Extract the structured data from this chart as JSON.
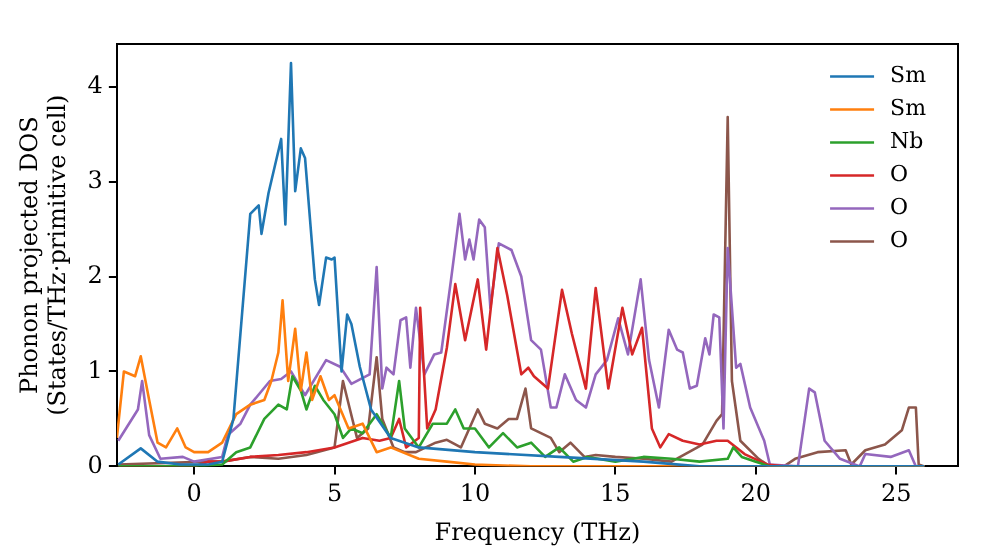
{
  "chart_data": {
    "type": "line",
    "xlabel": "Frequency (THz)",
    "ylabel": "Phonon projected DOS\n(States/THz·primitive cell)",
    "xlim": [
      -2.75,
      27.2
    ],
    "ylim": [
      0,
      4.45
    ],
    "xticks": [
      0,
      5,
      10,
      15,
      20,
      25
    ],
    "yticks": [
      0,
      1,
      2,
      3,
      4
    ],
    "grid": false,
    "legend": "top right",
    "marker": "none",
    "line_style": "solid",
    "series": [
      {
        "name": "Sm",
        "color": "#1f77b4",
        "x": [
          -2.7,
          -1.9,
          -1.3,
          -0.5,
          0.5,
          1.0,
          1.4,
          2.0,
          2.3,
          2.4,
          2.65,
          3.1,
          3.25,
          3.45,
          3.6,
          3.8,
          3.95,
          4.3,
          4.45,
          4.7,
          4.9,
          5.0,
          5.25,
          5.45,
          5.6,
          5.9,
          6.3,
          7.0,
          8.0,
          10.0,
          13.0,
          16.0,
          18.0,
          22.0,
          26.0
        ],
        "values": [
          0.02,
          0.19,
          0.05,
          0.02,
          0.02,
          0.05,
          0.5,
          2.66,
          2.75,
          2.45,
          2.88,
          3.45,
          2.55,
          4.25,
          2.9,
          3.35,
          3.25,
          1.97,
          1.7,
          2.2,
          2.18,
          2.2,
          1.0,
          1.6,
          1.5,
          1.05,
          0.6,
          0.3,
          0.2,
          0.15,
          0.1,
          0.05,
          0.0,
          0.0,
          0.0
        ]
      },
      {
        "name": "Sm",
        "color": "#ff7f0e",
        "x": [
          -2.75,
          -2.5,
          -2.1,
          -1.9,
          -1.6,
          -1.3,
          -1.0,
          -0.6,
          -0.3,
          0.0,
          0.5,
          1.0,
          1.5,
          2.0,
          2.5,
          2.75,
          3.0,
          3.15,
          3.35,
          3.6,
          3.8,
          4.0,
          4.2,
          4.5,
          4.8,
          5.0,
          5.5,
          6.0,
          6.5,
          7.0,
          8.0,
          9.0,
          10.0,
          12.0,
          16.0,
          20.0,
          26.0
        ],
        "values": [
          0.3,
          1.0,
          0.95,
          1.16,
          0.7,
          0.25,
          0.2,
          0.4,
          0.2,
          0.15,
          0.15,
          0.25,
          0.55,
          0.65,
          0.7,
          0.9,
          1.2,
          1.75,
          0.9,
          1.45,
          0.8,
          1.2,
          0.7,
          0.95,
          0.7,
          0.75,
          0.4,
          0.45,
          0.15,
          0.2,
          0.08,
          0.05,
          0.02,
          0.0,
          0.0,
          0.0,
          0.0
        ]
      },
      {
        "name": "Nb",
        "color": "#2ca02c",
        "x": [
          -2.7,
          0.0,
          1.0,
          1.5,
          2.0,
          2.5,
          3.0,
          3.3,
          3.5,
          3.8,
          4.0,
          4.3,
          4.6,
          5.0,
          5.3,
          5.6,
          6.0,
          6.5,
          7.0,
          7.3,
          7.5,
          8.0,
          8.5,
          9.0,
          9.3,
          9.6,
          10.0,
          10.5,
          11.0,
          11.5,
          12.0,
          12.5,
          13.0,
          13.5,
          14.0,
          15.0,
          16.0,
          17.0,
          18.0,
          19.0,
          19.2,
          19.5,
          20.0,
          20.5,
          26.0
        ],
        "values": [
          0.0,
          0.0,
          0.02,
          0.15,
          0.2,
          0.5,
          0.65,
          0.6,
          0.95,
          0.8,
          0.6,
          0.85,
          0.7,
          0.55,
          0.3,
          0.4,
          0.35,
          0.55,
          0.3,
          0.9,
          0.4,
          0.2,
          0.45,
          0.45,
          0.6,
          0.4,
          0.4,
          0.2,
          0.35,
          0.2,
          0.25,
          0.1,
          0.2,
          0.05,
          0.1,
          0.05,
          0.1,
          0.08,
          0.05,
          0.08,
          0.2,
          0.1,
          0.05,
          0.0,
          0.0
        ]
      },
      {
        "name": "O",
        "color": "#d62728",
        "x": [
          -2.7,
          0.0,
          0.5,
          1.0,
          2.0,
          3.0,
          4.0,
          5.0,
          5.5,
          6.0,
          6.6,
          7.0,
          7.3,
          7.55,
          8.0,
          8.05,
          8.3,
          8.6,
          9.0,
          9.3,
          9.65,
          10.1,
          10.4,
          10.8,
          11.15,
          11.65,
          11.9,
          12.1,
          12.6,
          13.1,
          13.45,
          13.95,
          14.3,
          14.75,
          15.25,
          15.6,
          15.95,
          16.3,
          16.6,
          16.9,
          17.4,
          18.0,
          18.6,
          19.0,
          19.6,
          20.4,
          21.0,
          26.0
        ],
        "values": [
          0.0,
          0.0,
          0.05,
          0.05,
          0.1,
          0.12,
          0.15,
          0.2,
          0.25,
          0.3,
          0.27,
          0.3,
          0.5,
          0.2,
          0.3,
          1.67,
          0.4,
          0.6,
          1.25,
          1.92,
          1.33,
          1.97,
          1.23,
          2.3,
          1.8,
          0.97,
          1.04,
          0.95,
          0.82,
          1.86,
          1.4,
          0.82,
          1.88,
          0.82,
          1.67,
          1.18,
          1.46,
          0.4,
          0.2,
          0.34,
          0.27,
          0.23,
          0.27,
          0.27,
          0.13,
          0.02,
          0.0,
          0.0
        ]
      },
      {
        "name": "O",
        "color": "#9467bd",
        "x": [
          -2.7,
          -2.0,
          -1.85,
          -1.6,
          -1.2,
          -0.4,
          0.0,
          1.0,
          1.2,
          1.65,
          2.0,
          2.7,
          3.1,
          3.45,
          3.95,
          4.7,
          5.2,
          5.6,
          6.25,
          6.5,
          6.7,
          6.85,
          7.1,
          7.35,
          7.55,
          7.7,
          7.9,
          8.2,
          8.55,
          8.8,
          9.15,
          9.45,
          9.65,
          9.8,
          9.95,
          10.15,
          10.35,
          10.55,
          10.85,
          11.3,
          11.65,
          12.0,
          12.35,
          12.7,
          12.9,
          13.2,
          13.6,
          13.95,
          14.3,
          14.7,
          15.1,
          15.45,
          15.9,
          16.2,
          16.55,
          16.9,
          17.2,
          17.4,
          17.65,
          17.9,
          18.2,
          18.35,
          18.5,
          18.7,
          18.85,
          19.0,
          19.3,
          19.45,
          19.8,
          20.3,
          20.5,
          21.5,
          21.9,
          22.1,
          22.45,
          23.0,
          23.7,
          23.9,
          24.8,
          25.45,
          25.7,
          26.0
        ],
        "values": [
          0.27,
          0.6,
          0.9,
          0.33,
          0.08,
          0.1,
          0.05,
          0.1,
          0.33,
          0.45,
          0.65,
          0.9,
          0.92,
          1.0,
          0.75,
          1.12,
          1.05,
          0.87,
          0.97,
          2.1,
          0.82,
          1.04,
          0.97,
          1.54,
          1.57,
          1.04,
          1.67,
          0.97,
          1.18,
          1.2,
          1.97,
          2.66,
          2.18,
          2.39,
          2.18,
          2.6,
          2.52,
          1.67,
          2.35,
          2.28,
          2.0,
          1.33,
          1.23,
          0.62,
          0.62,
          0.97,
          0.7,
          0.62,
          0.97,
          1.12,
          1.56,
          1.18,
          1.97,
          1.12,
          0.62,
          1.44,
          1.23,
          1.2,
          0.82,
          0.85,
          1.35,
          1.18,
          1.6,
          1.57,
          0.4,
          2.3,
          1.04,
          1.08,
          0.62,
          0.27,
          0.02,
          0.0,
          0.82,
          0.78,
          0.27,
          0.08,
          0.0,
          0.13,
          0.1,
          0.17,
          0.0,
          0.0
        ]
      },
      {
        "name": "O",
        "color": "#8c564b",
        "x": [
          -2.7,
          0.5,
          1.0,
          2.0,
          3.0,
          4.0,
          5.0,
          5.3,
          5.55,
          5.8,
          6.2,
          6.5,
          6.7,
          7.1,
          7.5,
          7.9,
          8.6,
          9.0,
          9.5,
          10.1,
          10.35,
          10.8,
          11.2,
          11.5,
          11.8,
          12.0,
          12.35,
          12.7,
          13.0,
          13.4,
          13.9,
          14.3,
          15.0,
          16.0,
          17.0,
          18.1,
          18.6,
          18.8,
          19.0,
          19.15,
          19.45,
          20.1,
          20.5,
          21.0,
          21.4,
          22.2,
          23.2,
          23.4,
          23.9,
          24.6,
          25.2,
          25.45,
          25.7,
          25.8,
          26.0
        ],
        "values": [
          0.02,
          0.05,
          0.05,
          0.1,
          0.08,
          0.12,
          0.2,
          0.9,
          0.6,
          0.3,
          0.4,
          1.15,
          0.5,
          0.2,
          0.15,
          0.15,
          0.25,
          0.28,
          0.2,
          0.6,
          0.45,
          0.4,
          0.5,
          0.5,
          0.82,
          0.4,
          0.35,
          0.3,
          0.15,
          0.25,
          0.1,
          0.12,
          0.1,
          0.08,
          0.05,
          0.23,
          0.48,
          0.55,
          3.68,
          0.9,
          0.27,
          0.08,
          0.0,
          0.0,
          0.08,
          0.15,
          0.17,
          0.02,
          0.17,
          0.23,
          0.38,
          0.62,
          0.62,
          0.02,
          0.0
        ]
      }
    ]
  }
}
